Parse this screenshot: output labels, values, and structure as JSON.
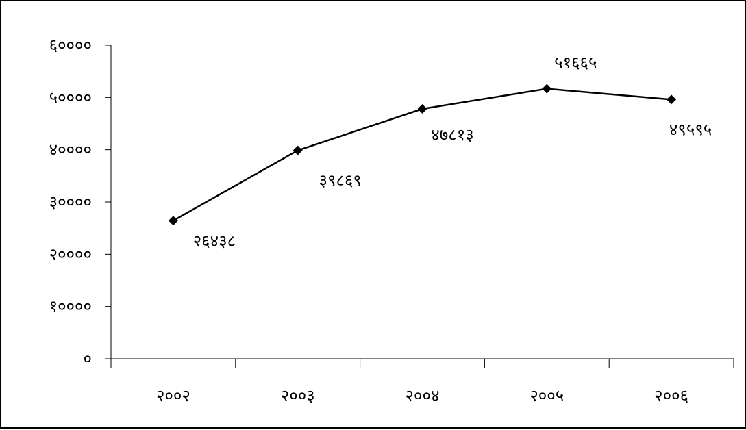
{
  "chart_data": {
    "type": "line",
    "categories": [
      "२००२",
      "२००३",
      "२००४",
      "२००५",
      "२००६"
    ],
    "series": [
      {
        "values": [
          26438,
          39869,
          47813,
          51665,
          49595
        ],
        "data_labels": [
          "२६४३८",
          "३९८६९",
          "४७८१३",
          "५१६६५",
          "४९५९५"
        ],
        "color": "#000000",
        "marker": "diamond"
      }
    ],
    "ylim": [
      0,
      60000
    ],
    "ytick_values": [
      0,
      10000,
      20000,
      30000,
      40000,
      50000,
      60000
    ],
    "ytick_labels": [
      "०",
      "१००००",
      "२००००",
      "३००००",
      "४००००",
      "५००००",
      "६००००"
    ],
    "grid": false,
    "legend": "none"
  }
}
